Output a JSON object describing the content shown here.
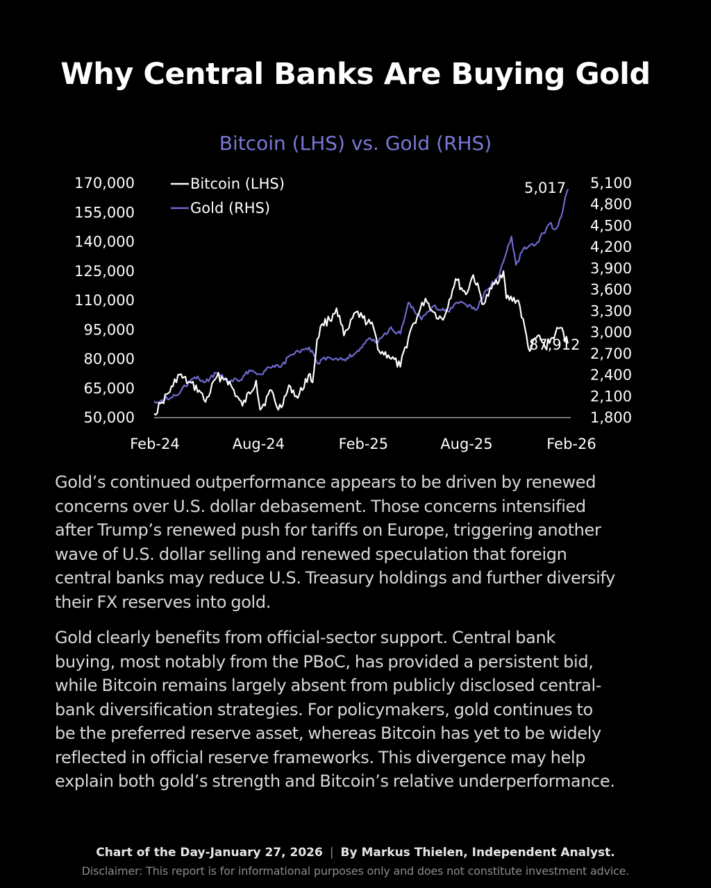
{
  "headline": "Why Central Banks Are Buying Gold",
  "chart_data": {
    "type": "line",
    "title": "Bitcoin (LHS) vs. Gold (RHS)",
    "x_ticks": [
      "Feb-24",
      "Aug-24",
      "Feb-25",
      "Aug-25",
      "Feb-26"
    ],
    "y_left": {
      "ticks": [
        "170,000",
        "155,000",
        "140,000",
        "125,000",
        "110,000",
        "95,000",
        "80,000",
        "65,000",
        "50,000"
      ],
      "range": [
        50000,
        170000
      ]
    },
    "y_right": {
      "ticks": [
        "5,100",
        "4,800",
        "4,500",
        "4,200",
        "3,900",
        "3,600",
        "3,300",
        "3,000",
        "2,700",
        "2,400",
        "2,100",
        "1,800"
      ],
      "range": [
        1800,
        5100
      ]
    },
    "legend_position": "top-left",
    "series": [
      {
        "name": "Bitcoin (LHS)",
        "axis": "left",
        "color": "#ffffff",
        "end_label": "87,912",
        "points": [
          [
            "2024-02-01",
            52000
          ],
          [
            "2024-02-15",
            58000
          ],
          [
            "2024-03-05",
            66000
          ],
          [
            "2024-03-14",
            72000
          ],
          [
            "2024-04-01",
            68000
          ],
          [
            "2024-04-20",
            64000
          ],
          [
            "2024-05-01",
            58000
          ],
          [
            "2024-05-21",
            71000
          ],
          [
            "2024-06-07",
            70000
          ],
          [
            "2024-06-25",
            61000
          ],
          [
            "2024-07-05",
            56000
          ],
          [
            "2024-07-29",
            69000
          ],
          [
            "2024-08-05",
            54000
          ],
          [
            "2024-08-25",
            64000
          ],
          [
            "2024-09-06",
            54000
          ],
          [
            "2024-09-27",
            66000
          ],
          [
            "2024-10-10",
            60000
          ],
          [
            "2024-10-29",
            72000
          ],
          [
            "2024-11-05",
            68000
          ],
          [
            "2024-11-13",
            90000
          ],
          [
            "2024-11-22",
            98000
          ],
          [
            "2024-12-05",
            100000
          ],
          [
            "2024-12-17",
            106000
          ],
          [
            "2024-12-30",
            92000
          ],
          [
            "2025-01-08",
            96000
          ],
          [
            "2025-01-20",
            104000
          ],
          [
            "2025-02-01",
            101000
          ],
          [
            "2025-02-20",
            96000
          ],
          [
            "2025-03-02",
            84000
          ],
          [
            "2025-03-18",
            82000
          ],
          [
            "2025-04-08",
            76000
          ],
          [
            "2025-04-25",
            94000
          ],
          [
            "2025-05-10",
            103000
          ],
          [
            "2025-05-22",
            111000
          ],
          [
            "2025-06-05",
            104000
          ],
          [
            "2025-06-22",
            100000
          ],
          [
            "2025-07-14",
            121000
          ],
          [
            "2025-08-01",
            113000
          ],
          [
            "2025-08-14",
            123000
          ],
          [
            "2025-09-01",
            108000
          ],
          [
            "2025-09-15",
            116000
          ],
          [
            "2025-10-06",
            125000
          ],
          [
            "2025-10-11",
            111000
          ],
          [
            "2025-11-01",
            110000
          ],
          [
            "2025-11-21",
            84000
          ],
          [
            "2025-12-05",
            92000
          ],
          [
            "2025-12-18",
            86000
          ],
          [
            "2026-01-05",
            93000
          ],
          [
            "2026-01-14",
            96000
          ],
          [
            "2026-01-27",
            87912
          ]
        ]
      },
      {
        "name": "Gold (RHS)",
        "axis": "right",
        "color": "#6e6ad1",
        "end_label": "5,017",
        "points": [
          [
            "2024-02-01",
            2030
          ],
          [
            "2024-03-01",
            2080
          ],
          [
            "2024-03-20",
            2190
          ],
          [
            "2024-04-12",
            2370
          ],
          [
            "2024-05-01",
            2300
          ],
          [
            "2024-05-20",
            2430
          ],
          [
            "2024-06-10",
            2310
          ],
          [
            "2024-07-01",
            2330
          ],
          [
            "2024-07-17",
            2470
          ],
          [
            "2024-08-05",
            2410
          ],
          [
            "2024-08-20",
            2510
          ],
          [
            "2024-09-10",
            2510
          ],
          [
            "2024-09-26",
            2670
          ],
          [
            "2024-10-30",
            2790
          ],
          [
            "2024-11-14",
            2560
          ],
          [
            "2024-12-01",
            2650
          ],
          [
            "2024-12-30",
            2620
          ],
          [
            "2025-01-20",
            2710
          ],
          [
            "2025-02-10",
            2900
          ],
          [
            "2025-02-28",
            2860
          ],
          [
            "2025-03-20",
            3050
          ],
          [
            "2025-04-08",
            2980
          ],
          [
            "2025-04-22",
            3420
          ],
          [
            "2025-05-15",
            3180
          ],
          [
            "2025-06-05",
            3370
          ],
          [
            "2025-06-30",
            3300
          ],
          [
            "2025-07-22",
            3430
          ],
          [
            "2025-08-20",
            3320
          ],
          [
            "2025-09-05",
            3590
          ],
          [
            "2025-09-25",
            3760
          ],
          [
            "2025-10-08",
            4050
          ],
          [
            "2025-10-20",
            4350
          ],
          [
            "2025-10-28",
            3950
          ],
          [
            "2025-11-12",
            4200
          ],
          [
            "2025-12-01",
            4230
          ],
          [
            "2025-12-26",
            4530
          ],
          [
            "2026-01-05",
            4450
          ],
          [
            "2026-01-15",
            4620
          ],
          [
            "2026-01-20",
            4800
          ],
          [
            "2026-01-27",
            5017
          ]
        ]
      }
    ]
  },
  "paragraphs": [
    [
      "Gold’s continued outperformance appears to be driven by renewed",
      "concerns over U.S. dollar debasement. Those concerns intensified",
      "after Trump’s renewed push for tariffs on Europe, triggering another",
      "wave of U.S. dollar selling and renewed speculation that foreign",
      "central banks may reduce U.S. Treasury holdings and further diversify",
      "their FX reserves into gold."
    ],
    [
      "Gold clearly benefits from official-sector support. Central bank",
      "buying, most notably from the PBoC, has provided a persistent bid,",
      "while Bitcoin remains largely absent from publicly disclosed central-",
      "bank diversification strategies. For policymakers, gold continues to",
      "be the preferred reserve asset, whereas Bitcoin has yet to be widely",
      "reflected in official reserve frameworks. This divergence may help",
      "explain both gold’s strength and Bitcoin’s relative underperformance."
    ]
  ],
  "footer": {
    "chart_of_day": "Chart of the Day-January 27, 2026",
    "separator": "|",
    "byline": "By Markus Thielen, Independent Analyst.",
    "disclaimer": "Disclaimer: This report is for informational purposes only and does not constitute investment advice."
  }
}
